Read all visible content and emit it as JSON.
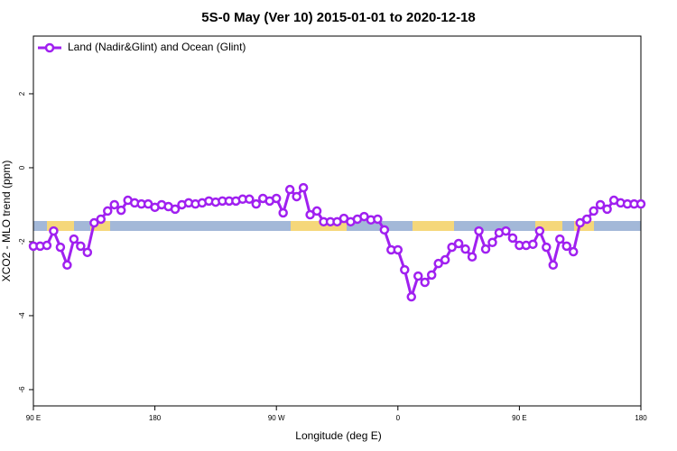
{
  "chart_data": {
    "type": "line",
    "title": "5S-0 May (Ver 10)   2015-01-01 to 2020-12-18",
    "x_label": "Longitude (deg E)",
    "y_label": "XCO2 - MLO trend (ppm)",
    "legend": "topleft",
    "x": [
      90,
      95,
      100,
      105,
      110,
      115,
      120,
      125,
      130,
      135,
      140,
      145,
      150,
      155,
      160,
      165,
      170,
      175,
      180,
      185,
      190,
      195,
      200,
      205,
      210,
      215,
      220,
      225,
      230,
      235,
      240,
      245,
      250,
      255,
      260,
      265,
      270,
      275,
      280,
      285,
      290,
      295,
      300,
      305,
      310,
      315,
      320,
      325,
      330,
      335,
      340,
      345,
      350,
      355,
      360,
      365,
      370,
      375,
      380,
      385,
      390,
      395,
      400,
      405,
      410,
      415,
      420,
      425,
      430,
      435,
      440,
      445,
      450,
      455,
      460,
      465,
      470,
      475,
      480,
      485,
      490,
      495,
      500,
      505,
      510,
      515,
      520,
      525,
      530,
      535,
      540
    ],
    "series": [
      {
        "name": "Land (Nadir&Glint) and Ocean (Glint)",
        "color": "#a020f0",
        "values": [
          -2.12,
          -2.12,
          -2.1,
          -1.71,
          -2.15,
          -2.63,
          -1.93,
          -2.12,
          -2.29,
          -1.49,
          -1.39,
          -1.17,
          -1.0,
          -1.15,
          -0.88,
          -0.95,
          -0.98,
          -0.98,
          -1.07,
          -1.0,
          -1.05,
          -1.12,
          -1.0,
          -0.95,
          -0.98,
          -0.95,
          -0.9,
          -0.93,
          -0.9,
          -0.9,
          -0.9,
          -0.85,
          -0.85,
          -0.98,
          -0.83,
          -0.9,
          -0.83,
          -1.22,
          -0.59,
          -0.78,
          -0.54,
          -1.27,
          -1.17,
          -1.46,
          -1.46,
          -1.46,
          -1.37,
          -1.46,
          -1.39,
          -1.32,
          -1.41,
          -1.39,
          -1.68,
          -2.22,
          -2.22,
          -2.76,
          -3.49,
          -2.93,
          -3.1,
          -2.9,
          -2.59,
          -2.49,
          -2.15,
          -2.05,
          -2.2,
          -2.41,
          -1.71,
          -2.2,
          -2.02,
          -1.76,
          -1.71,
          -1.9,
          -2.1,
          -2.1,
          -2.07,
          -1.71,
          -2.15,
          -2.63,
          -1.93,
          -2.12,
          -2.27,
          -1.49,
          -1.39,
          -1.17,
          -1.0,
          -1.12,
          -0.88,
          -0.95,
          -0.98,
          -0.98,
          -0.98
        ]
      }
    ],
    "xlim": [
      90,
      540
    ],
    "xticks": [
      {
        "value": 90,
        "label": "90 E"
      },
      {
        "value": 180,
        "label": "180"
      },
      {
        "value": 270,
        "label": "90 W"
      },
      {
        "value": 360,
        "label": "0"
      },
      {
        "value": 450,
        "label": "90 E"
      },
      {
        "value": 540,
        "label": "180"
      }
    ],
    "ylim": [
      -6.44,
      3.56
    ],
    "yticks": [
      -6,
      -4,
      -2,
      0,
      2
    ]
  }
}
